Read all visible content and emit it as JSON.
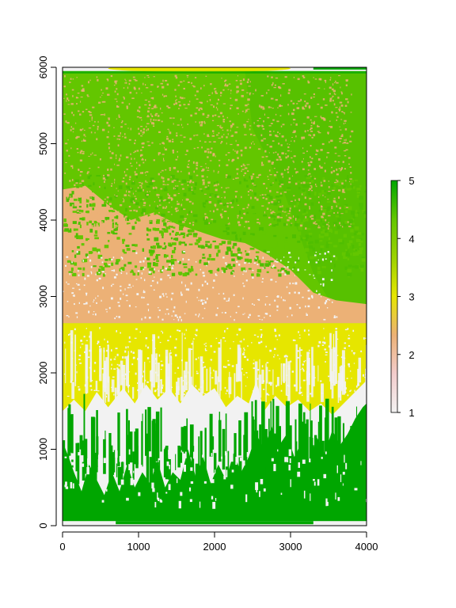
{
  "chart_data": {
    "type": "heatmap",
    "title": "",
    "xlabel": "",
    "ylabel": "",
    "xlim": [
      0,
      4000
    ],
    "ylim": [
      0,
      6000
    ],
    "x_ticks": [
      "0",
      "1000",
      "2000",
      "3000",
      "4000"
    ],
    "y_ticks": [
      "0",
      "1000",
      "2000",
      "3000",
      "4000",
      "5000",
      "6000"
    ],
    "grid": false,
    "legend": {
      "type": "colorbar",
      "placement": "right",
      "ticks": [
        "1",
        "2",
        "3",
        "4",
        "5"
      ],
      "range": [
        1,
        5
      ]
    },
    "class_colors": {
      "1": "#F2F2F2",
      "2": "#ECB176",
      "3": "#E6E600",
      "4": "#63C600",
      "5": "#00A600"
    },
    "colorbar_stops": [
      "#F2F2F2",
      "#F2CCCC",
      "#ECB176",
      "#E6E600",
      "#9CD200",
      "#63C600",
      "#00A600"
    ],
    "regions": [
      {
        "class": 5,
        "y_range": [
          0,
          1000
        ]
      },
      {
        "class": 1,
        "y_range": [
          700,
          1900
        ]
      },
      {
        "class": 3,
        "y_range": [
          1800,
          2600
        ]
      },
      {
        "class": 2,
        "y_range": [
          2650,
          4400
        ]
      },
      {
        "class": 4,
        "y_range": [
          3800,
          5950
        ]
      }
    ]
  }
}
